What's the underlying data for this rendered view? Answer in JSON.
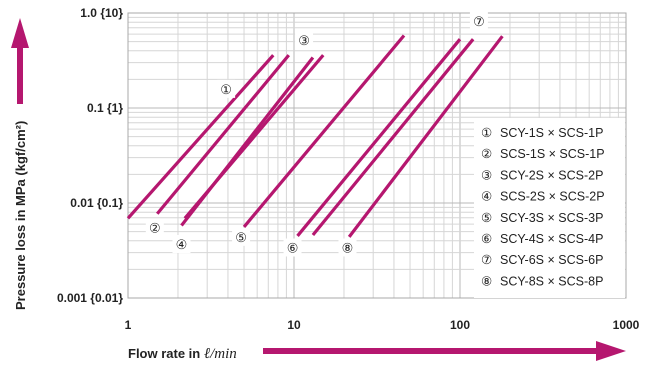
{
  "chart_data": {
    "type": "line",
    "xscale": "log",
    "yscale": "log",
    "xlim": [
      1,
      1000
    ],
    "ylim": [
      0.001,
      1.0
    ],
    "grid": true,
    "xlabel_prefix": "Flow rate in",
    "xlabel_unit": "ℓ/min",
    "ylabel": "Pressure loss in MPa (kgf/cm²)",
    "x_ticks": [
      {
        "value": 1,
        "label": "1"
      },
      {
        "value": 10,
        "label": "10"
      },
      {
        "value": 100,
        "label": "100"
      },
      {
        "value": 1000,
        "label": "1000"
      }
    ],
    "y_ticks": [
      {
        "value": 1.0,
        "label": "1.0 {10}"
      },
      {
        "value": 0.1,
        "label": "0.1 {1}"
      },
      {
        "value": 0.01,
        "label": "0.01 {0.1}"
      },
      {
        "value": 0.001,
        "label": "0.001 {0.01}"
      }
    ],
    "line_color": "#b5176f",
    "series": [
      {
        "id": "1",
        "marker": "①",
        "name": "SCY-1S × SCS-1P",
        "x": [
          1.0,
          7.5
        ],
        "y": [
          0.0069,
          0.36
        ],
        "marker_at": [
          3.9,
          0.159
        ]
      },
      {
        "id": "2",
        "marker": "②",
        "name": "SCS-1S × SCS-1P",
        "x": [
          1.5,
          9.3
        ],
        "y": [
          0.0077,
          0.36
        ],
        "marker_at": [
          1.45,
          0.0055
        ]
      },
      {
        "id": "3",
        "marker": "③",
        "name": "SCY-2S × SCS-2P",
        "x": [
          2.2,
          15.0
        ],
        "y": [
          0.0069,
          0.36
        ],
        "marker_at": [
          11.5,
          0.52
        ]
      },
      {
        "id": "4",
        "marker": "④",
        "name": "SCS-2S × SCS-2P",
        "x": [
          2.1,
          13.0
        ],
        "y": [
          0.0058,
          0.34
        ],
        "marker_at": [
          2.1,
          0.0037
        ]
      },
      {
        "id": "5",
        "marker": "⑤",
        "name": "SCY-3S × SCS-3P",
        "x": [
          5.0,
          46.0
        ],
        "y": [
          0.0056,
          0.58
        ],
        "marker_at": [
          4.8,
          0.0044
        ]
      },
      {
        "id": "6",
        "marker": "⑥",
        "name": "SCY-4S × SCS-4P",
        "x": [
          10.5,
          100.0
        ],
        "y": [
          0.0045,
          0.53
        ],
        "marker_at": [
          9.8,
          0.0034
        ]
      },
      {
        "id": "7",
        "marker": "⑦",
        "name": "SCY-6S × SCS-6P",
        "x": [
          13.0,
          120.0
        ],
        "y": [
          0.0046,
          0.53
        ],
        "marker_at": [
          130.0,
          0.82
        ]
      },
      {
        "id": "8",
        "marker": "⑧",
        "name": "SCY-8S × SCS-8P",
        "x": [
          21.5,
          180.0
        ],
        "y": [
          0.0044,
          0.57
        ],
        "marker_at": [
          21.0,
          0.0034
        ]
      }
    ]
  }
}
